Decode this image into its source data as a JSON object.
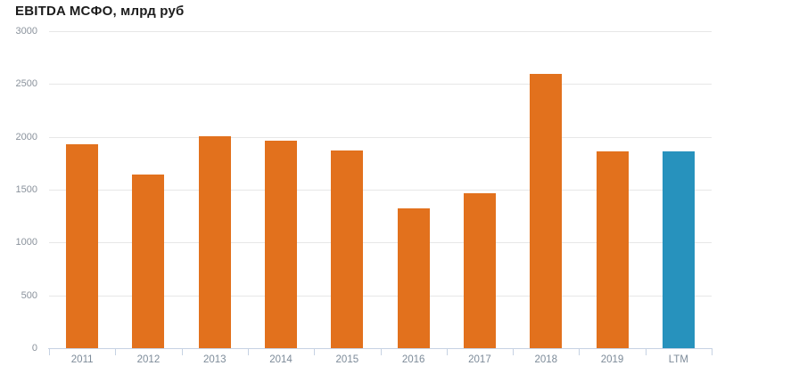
{
  "chart_data": {
    "type": "bar",
    "title": "EBITDA МСФО, млрд руб",
    "categories": [
      "2011",
      "2012",
      "2013",
      "2014",
      "2015",
      "2016",
      "2017",
      "2018",
      "2019",
      "LTM"
    ],
    "values": [
      1930,
      1647,
      2009,
      1962,
      1875,
      1322,
      1467,
      2599,
      1860,
      1860
    ],
    "bar_colors": [
      "#e2711d",
      "#e2711d",
      "#e2711d",
      "#e2711d",
      "#e2711d",
      "#e2711d",
      "#e2711d",
      "#e2711d",
      "#e2711d",
      "#2792bd"
    ],
    "highlight_category": "LTM",
    "xlabel": "",
    "ylabel": "",
    "ylim": [
      0,
      3000
    ],
    "yticks": [
      0,
      500,
      1000,
      1500,
      2000,
      2500,
      3000
    ],
    "grid": "horizontal-only",
    "legend": "none",
    "colors": {
      "bar_default": "#e2711d",
      "bar_highlight": "#2792bd",
      "gridline": "#e7e7e7",
      "axis_line": "#c6d2e3",
      "y_tick_label": "#8a929c",
      "x_tick_label": "#7d8b99",
      "title": "#1c1c1c",
      "background": "#ffffff"
    }
  }
}
